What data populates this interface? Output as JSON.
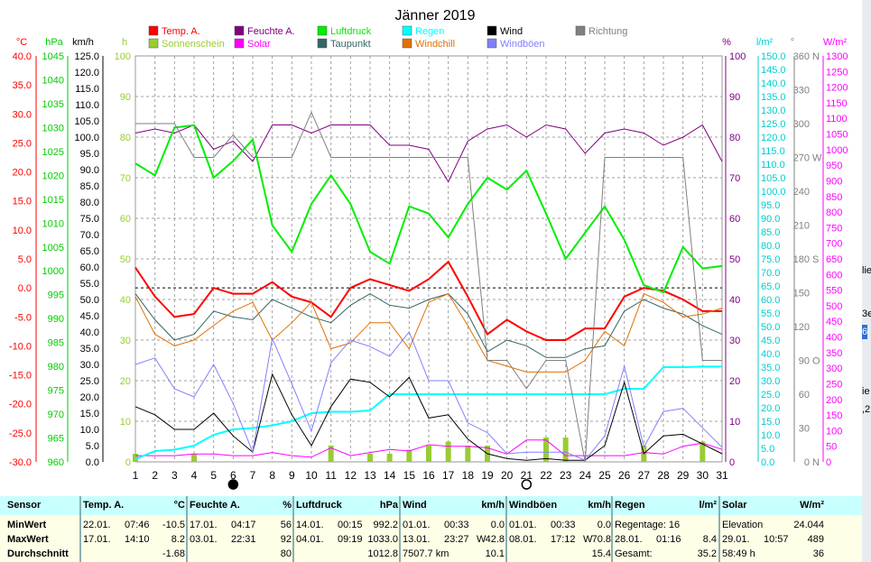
{
  "chart_data": {
    "type": "line",
    "title": "Jänner 2019",
    "x": [
      1,
      2,
      3,
      4,
      5,
      6,
      7,
      8,
      9,
      10,
      11,
      12,
      13,
      14,
      15,
      16,
      17,
      18,
      19,
      20,
      21,
      22,
      23,
      24,
      25,
      26,
      27,
      28,
      29,
      30,
      31
    ],
    "xlim": [
      1,
      31
    ],
    "axes": {
      "temp": {
        "unit": "°C",
        "ticks": [
          "40.0",
          "35.0",
          "30.0",
          "25.0",
          "20.0",
          "15.0",
          "10.0",
          "5.0",
          "0.0",
          "-5.0",
          "-10.0",
          "-15.0",
          "-20.0",
          "-25.0",
          "-30.0"
        ],
        "ylim": [
          -30,
          40
        ],
        "color": "#ff0000"
      },
      "hpa": {
        "unit": "hPa",
        "ticks": [
          "1045",
          "1040",
          "1035",
          "1030",
          "1025",
          "1020",
          "1015",
          "1010",
          "1005",
          "1000",
          "995",
          "990",
          "985",
          "980",
          "975",
          "970",
          "965",
          "960"
        ],
        "ylim": [
          960,
          1045
        ],
        "color": "#00cc00"
      },
      "kmh": {
        "unit": "km/h",
        "ticks": [
          "125.0",
          "120.0",
          "115.0",
          "110.0",
          "105.0",
          "100.0",
          "95.0",
          "90.0",
          "85.0",
          "80.0",
          "75.0",
          "70.0",
          "65.0",
          "60.0",
          "55.0",
          "50.0",
          "45.0",
          "40.0",
          "35.0",
          "30.0",
          "25.0",
          "20.0",
          "15.0",
          "10.0",
          "5.0",
          "0.0"
        ],
        "ylim": [
          0,
          125
        ],
        "color": "#000000"
      },
      "hours": {
        "unit": "h",
        "ticks": [
          "100",
          "90",
          "80",
          "70",
          "60",
          "50",
          "40",
          "30",
          "20",
          "10",
          "0"
        ],
        "ylim": [
          0,
          100
        ],
        "color": "#99cc33"
      },
      "pct": {
        "unit": "%",
        "ticks": [
          "100",
          "90",
          "80",
          "70",
          "60",
          "50",
          "40",
          "30",
          "20",
          "10",
          "0"
        ],
        "ylim": [
          0,
          100
        ],
        "color": "#800080"
      },
      "rain": {
        "unit": "l/m²",
        "ticks": [
          "150.0",
          "145.0",
          "140.0",
          "135.0",
          "130.0",
          "125.0",
          "120.0",
          "115.0",
          "110.0",
          "105.0",
          "100.0",
          "95.0",
          "90.0",
          "85.0",
          "80.0",
          "75.0",
          "70.0",
          "65.0",
          "60.0",
          "55.0",
          "50.0",
          "45.0",
          "40.0",
          "35.0",
          "30.0",
          "25.0",
          "20.0",
          "15.0",
          "10.0",
          "5.0",
          "0.0"
        ],
        "ylim": [
          0,
          150
        ],
        "color": "#00cccc"
      },
      "deg": {
        "unit": "°",
        "ticks": [
          "360",
          "330",
          "300",
          "270",
          "240",
          "210",
          "180",
          "150",
          "120",
          "90",
          "60",
          "30",
          "0"
        ],
        "ylim": [
          0,
          360
        ],
        "color": "#808080"
      },
      "dir": {
        "labels": [
          {
            "v": 360,
            "t": "N"
          },
          {
            "v": 270,
            "t": "W"
          },
          {
            "v": 180,
            "t": "S"
          },
          {
            "v": 90,
            "t": "O"
          },
          {
            "v": 0,
            "t": "N"
          }
        ]
      },
      "solar": {
        "unit": "W/m²",
        "ticks": [
          "1300",
          "1250",
          "1200",
          "1150",
          "1100",
          "1050",
          "1000",
          "950",
          "900",
          "850",
          "800",
          "750",
          "700",
          "650",
          "600",
          "550",
          "500",
          "450",
          "400",
          "350",
          "300",
          "250",
          "200",
          "150",
          "100",
          "50",
          "0"
        ],
        "ylim": [
          0,
          1300
        ],
        "color": "#ff00ff"
      }
    },
    "moon": [
      {
        "day": 6,
        "phase": "new"
      },
      {
        "day": 21,
        "phase": "full"
      }
    ],
    "series": [
      {
        "name": "Temp. A.",
        "axis": "temp",
        "color": "#ff0000",
        "width": 2,
        "values": [
          3.5,
          -1.5,
          -5.0,
          -4.5,
          0.0,
          -1.0,
          -1.0,
          1.0,
          -1.5,
          -2.5,
          -5.0,
          0.0,
          1.5,
          0.5,
          -0.5,
          1.5,
          4.5,
          -1.5,
          -8.0,
          -5.5,
          -7.5,
          -9.0,
          -9.0,
          -7.0,
          -7.0,
          -1.5,
          0.0,
          -0.5,
          -2.0,
          -4.0,
          -4.0
        ]
      },
      {
        "name": "Feuchte A.",
        "axis": "pct",
        "color": "#800080",
        "width": 1,
        "values": [
          81,
          82,
          81,
          83,
          77,
          79,
          74,
          83,
          83,
          81,
          83,
          83,
          83,
          78,
          78,
          77,
          69,
          79,
          82,
          83,
          80,
          83,
          82,
          76,
          81,
          82,
          81,
          78,
          80,
          83,
          74
        ]
      },
      {
        "name": "Luftdruck",
        "axis": "hpa",
        "color": "#00ee00",
        "width": 2,
        "values": [
          1022.5,
          1020.0,
          1030.0,
          1030.5,
          1019.5,
          1023.0,
          1027.5,
          1009.5,
          1004.0,
          1014.0,
          1020.0,
          1014.0,
          1004.0,
          1001.5,
          1013.5,
          1012.0,
          1007.0,
          1014.0,
          1019.5,
          1017.0,
          1021.0,
          1012.0,
          1002.5,
          1008.0,
          1013.5,
          1006.5,
          997.0,
          995.5,
          1005.0,
          1000.5,
          1001.0
        ]
      },
      {
        "name": "Sonnenschein",
        "axis": "hours",
        "color": "#99cc33",
        "type": "bar",
        "values": [
          2,
          0,
          0,
          2,
          0,
          0,
          0,
          0,
          0,
          0,
          4,
          0,
          2,
          2,
          3,
          4,
          5,
          4,
          4,
          0,
          0,
          6,
          6,
          0,
          0,
          0,
          4,
          0,
          0,
          5,
          0
        ]
      },
      {
        "name": "Solar",
        "axis": "solar",
        "color": "#ff00ff",
        "width": 1,
        "values": [
          20,
          20,
          20,
          25,
          25,
          20,
          20,
          30,
          20,
          15,
          45,
          20,
          30,
          40,
          35,
          55,
          50,
          50,
          45,
          25,
          70,
          70,
          20,
          20,
          20,
          20,
          30,
          25,
          50,
          60,
          40
        ]
      },
      {
        "name": "Taupunkt",
        "axis": "temp",
        "color": "#336666",
        "width": 1,
        "values": [
          -1.0,
          -5.5,
          -9.0,
          -8.0,
          -4.0,
          -5.0,
          -5.5,
          -2.0,
          -3.5,
          -5.0,
          -6.0,
          -3.0,
          -1.0,
          -3.0,
          -3.5,
          -2.0,
          -1.0,
          -4.5,
          -11.0,
          -9.0,
          -10.0,
          -12.0,
          -12.0,
          -10.5,
          -10.0,
          -4.0,
          -2.0,
          -3.5,
          -4.5,
          -6.5,
          -8.0
        ]
      },
      {
        "name": "Regen",
        "axis": "rain",
        "color": "#00ffff",
        "width": 2,
        "values": [
          1.0,
          4.0,
          4.5,
          6.0,
          10.0,
          12.0,
          12.5,
          13.5,
          15.0,
          18.0,
          18.5,
          18.5,
          19.0,
          25.0,
          25.0,
          25.0,
          25.0,
          25.0,
          25.0,
          25.0,
          25.0,
          25.0,
          25.0,
          25.0,
          25.0,
          27.0,
          27.0,
          35.0,
          35.0,
          35.2,
          35.2
        ]
      },
      {
        "name": "Windchill",
        "axis": "temp",
        "color": "#e07000",
        "width": 1,
        "values": [
          -1.5,
          -8.0,
          -10.0,
          -9.0,
          -6.5,
          -4.0,
          -2.5,
          -9.0,
          -6.0,
          -2.5,
          -10.5,
          -9.5,
          -6.0,
          -6.0,
          -10.5,
          -2.5,
          -1.0,
          -6.5,
          -12.5,
          -13.5,
          -14.5,
          -14.5,
          -14.5,
          -12.5,
          -7.5,
          -10.0,
          -1.0,
          -2.5,
          -5.0,
          -4.5,
          -3.5
        ]
      },
      {
        "name": "Wind",
        "axis": "kmh",
        "color": "#000000",
        "width": 1,
        "values": [
          17.0,
          14.5,
          10.0,
          10.0,
          15.0,
          8.0,
          3.0,
          27.0,
          14.5,
          5.0,
          17.0,
          25.5,
          24.5,
          20.0,
          26.0,
          13.5,
          14.5,
          7.0,
          2.5,
          1.0,
          0.5,
          1.0,
          0.5,
          0.5,
          5.0,
          24.5,
          2.5,
          8.0,
          8.5,
          5.5,
          2.5
        ]
      },
      {
        "name": "Windböen",
        "axis": "kmh",
        "color": "#8080ff",
        "width": 1,
        "values": [
          30.0,
          32.0,
          22.5,
          20.0,
          30.0,
          18.0,
          3.0,
          38.0,
          24.0,
          9.5,
          30.5,
          37.5,
          35.5,
          32.5,
          40.0,
          25.0,
          25.0,
          12.0,
          9.0,
          2.5,
          3.0,
          3.0,
          3.0,
          0.5,
          8.0,
          29.5,
          4.5,
          15.5,
          16.5,
          10.5,
          4.5
        ]
      },
      {
        "name": "Richtung",
        "axis": "deg",
        "color": "#808080",
        "width": 1,
        "values": [
          300,
          300,
          300,
          270,
          270,
          290,
          270,
          270,
          270,
          310,
          270,
          270,
          270,
          270,
          270,
          270,
          270,
          270,
          90,
          90,
          65,
          90,
          90,
          0,
          270,
          270,
          270,
          270,
          270,
          90,
          90
        ]
      }
    ],
    "legend": [
      {
        "name": "Temp. A.",
        "color": "#ff0000"
      },
      {
        "name": "Sonnenschein",
        "color": "#99cc33"
      },
      {
        "name": "Feuchte A.",
        "color": "#800080"
      },
      {
        "name": "Solar",
        "color": "#ff00ff"
      },
      {
        "name": "Luftdruck",
        "color": "#00ee00"
      },
      {
        "name": "Taupunkt",
        "color": "#336666"
      },
      {
        "name": "Regen",
        "color": "#00ffff"
      },
      {
        "name": "Windchill",
        "color": "#e07000"
      },
      {
        "name": "Wind",
        "color": "#000000"
      },
      {
        "name": "Windböen",
        "color": "#8080ff"
      },
      {
        "name": "Richtung",
        "color": "#808080"
      }
    ]
  },
  "stats": {
    "row_labels": [
      "Sensor",
      "MinWert",
      "MaxWert",
      "Durchschnitt"
    ],
    "blocks": [
      {
        "name": "Temp. A.",
        "unit": "°C",
        "min": [
          "22.01.",
          "07:46",
          "",
          "-10.5"
        ],
        "max": [
          "17.01.",
          "14:10",
          "",
          "8.2"
        ],
        "avg": [
          "",
          "-1.68"
        ]
      },
      {
        "name": "Feuchte A.",
        "unit": "%",
        "min": [
          "17.01.",
          "04:17",
          "",
          "56"
        ],
        "max": [
          "03.01.",
          "22:31",
          "",
          "92"
        ],
        "avg": [
          "",
          "80"
        ]
      },
      {
        "name": "Luftdruck",
        "unit": "hPa",
        "min": [
          "14.01.",
          "00:15",
          "",
          "992.2"
        ],
        "max": [
          "04.01.",
          "09:19",
          "",
          "1033.0"
        ],
        "avg": [
          "",
          "1012.8"
        ]
      },
      {
        "name": "Wind",
        "unit": "km/h",
        "min": [
          "01.01.",
          "00:33",
          "",
          "0.0"
        ],
        "max": [
          "13.01.",
          "23:27",
          "W",
          "42.8"
        ],
        "avg": [
          "7507.7 km",
          "10.1"
        ]
      },
      {
        "name": "Windböen",
        "unit": "km/h",
        "min": [
          "01.01.",
          "00:33",
          "",
          "0.0"
        ],
        "max": [
          "08.01.",
          "17:12",
          "W",
          "70.8"
        ],
        "avg": [
          "",
          "15.4"
        ]
      },
      {
        "name": "Regen",
        "unit": "l/m²",
        "min": [
          "Regentage: 16",
          "",
          "",
          ""
        ],
        "max": [
          "28.01.",
          "01:16",
          "",
          "8.4"
        ],
        "avg": [
          "Gesamt:",
          "35.2"
        ]
      },
      {
        "name": "Solar",
        "unit": "W/m²",
        "min": [
          "Elevation",
          "",
          "",
          "24.044"
        ],
        "max": [
          "29.01.",
          "10:57",
          "",
          "489"
        ],
        "avg": [
          "58:49 h",
          "36"
        ]
      }
    ]
  },
  "edge": {
    "fragments": [
      "lie",
      "3e",
      "6",
      "ie",
      ",2"
    ]
  }
}
